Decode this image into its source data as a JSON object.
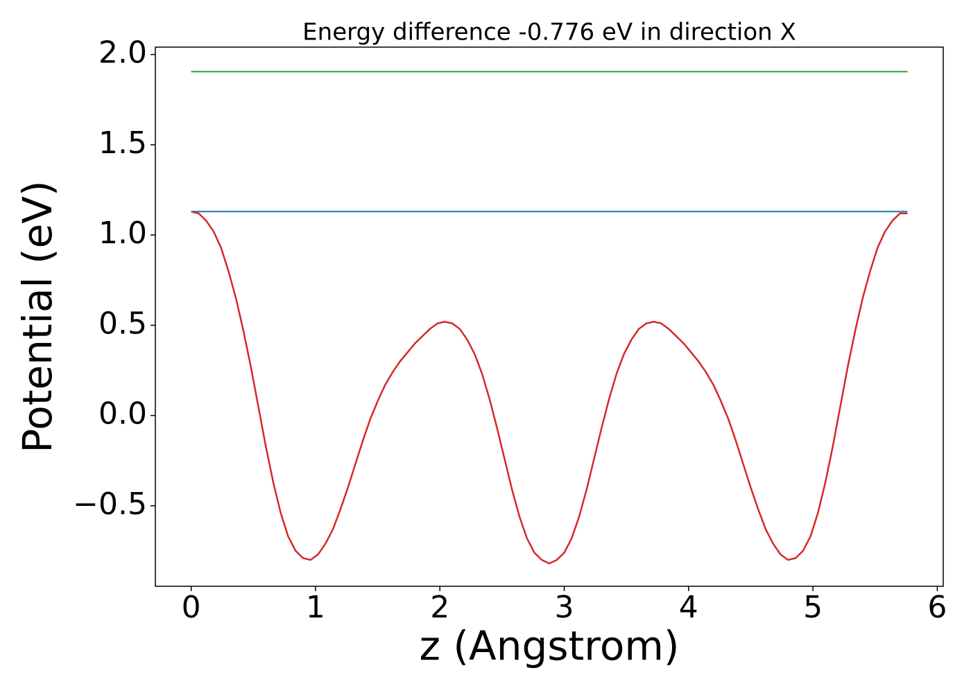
{
  "chart_data": {
    "type": "line",
    "title": "Energy difference -0.776 eV in direction X",
    "xlabel": "z (Angstrom)",
    "ylabel": "Potential (eV)",
    "xlim": [
      -0.288,
      6.048
    ],
    "ylim": [
      -0.946,
      2.041
    ],
    "xticks": [
      0,
      1,
      2,
      3,
      4,
      5,
      6
    ],
    "yticks": [
      {
        "value": -0.5,
        "label": "−0.5"
      },
      {
        "value": 0,
        "label": "0.0"
      },
      {
        "value": 0.5,
        "label": "0.5"
      },
      {
        "value": 1,
        "label": "1.0"
      },
      {
        "value": 1.5,
        "label": "1.5"
      },
      {
        "value": 2,
        "label": "2.0"
      }
    ],
    "series": [
      {
        "color": "#d62728",
        "x": [
          0,
          0.06,
          0.12,
          0.18,
          0.24,
          0.3,
          0.36,
          0.42,
          0.48,
          0.54,
          0.6,
          0.66,
          0.72,
          0.78,
          0.84,
          0.9,
          0.96,
          1.02,
          1.08,
          1.14,
          1.2,
          1.26,
          1.32,
          1.38,
          1.44,
          1.5,
          1.56,
          1.62,
          1.68,
          1.74,
          1.8,
          1.86,
          1.92,
          1.98,
          2.04,
          2.1,
          2.16,
          2.22,
          2.28,
          2.34,
          2.4,
          2.46,
          2.52,
          2.58,
          2.64,
          2.7,
          2.76,
          2.82,
          2.88,
          2.94,
          3,
          3.06,
          3.12,
          3.18,
          3.24,
          3.3,
          3.36,
          3.42,
          3.48,
          3.54,
          3.6,
          3.66,
          3.72,
          3.78,
          3.84,
          3.9,
          3.96,
          4.02,
          4.08,
          4.14,
          4.2,
          4.26,
          4.32,
          4.38,
          4.44,
          4.5,
          4.56,
          4.62,
          4.68,
          4.74,
          4.8,
          4.86,
          4.92,
          4.98,
          5.04,
          5.1,
          5.16,
          5.22,
          5.28,
          5.34,
          5.4,
          5.46,
          5.52,
          5.58,
          5.64,
          5.7,
          5.76
        ],
        "values": [
          1.13,
          1.12,
          1.08,
          1.02,
          0.93,
          0.8,
          0.65,
          0.47,
          0.27,
          0.05,
          -0.17,
          -0.37,
          -0.54,
          -0.67,
          -0.75,
          -0.79,
          -0.8,
          -0.77,
          -0.71,
          -0.63,
          -0.52,
          -0.4,
          -0.27,
          -0.14,
          -0.02,
          0.08,
          0.17,
          0.24,
          0.3,
          0.35,
          0.4,
          0.44,
          0.48,
          0.51,
          0.52,
          0.51,
          0.48,
          0.42,
          0.34,
          0.23,
          0.09,
          -0.07,
          -0.24,
          -0.41,
          -0.56,
          -0.68,
          -0.76,
          -0.8,
          -0.82,
          -0.8,
          -0.76,
          -0.68,
          -0.56,
          -0.41,
          -0.24,
          -0.07,
          0.09,
          0.23,
          0.34,
          0.42,
          0.48,
          0.51,
          0.52,
          0.51,
          0.48,
          0.44,
          0.4,
          0.35,
          0.3,
          0.24,
          0.17,
          0.08,
          -0.02,
          -0.14,
          -0.27,
          -0.4,
          -0.52,
          -0.63,
          -0.71,
          -0.77,
          -0.8,
          -0.79,
          -0.75,
          -0.67,
          -0.54,
          -0.37,
          -0.17,
          0.05,
          0.27,
          0.47,
          0.65,
          0.8,
          0.93,
          1.02,
          1.08,
          1.12,
          1.12
        ]
      },
      {
        "color": "#1f77b4",
        "x": [
          0,
          5.76
        ],
        "values": [
          1.13,
          1.13
        ]
      },
      {
        "color": "#2ca02c",
        "x": [
          0,
          5.76
        ],
        "values": [
          1.905,
          1.905
        ]
      }
    ]
  }
}
